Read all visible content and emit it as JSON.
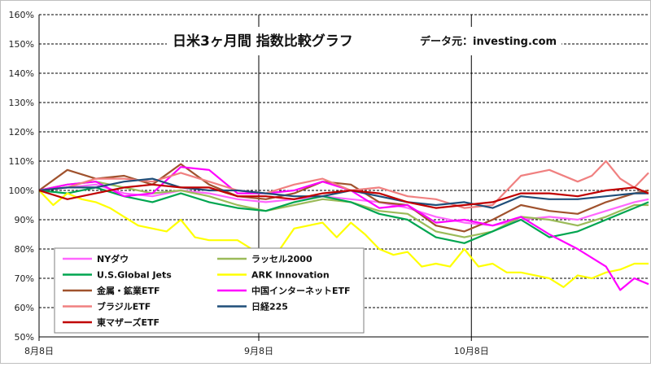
{
  "chart_data": {
    "type": "line",
    "title": "日米3ヶ月間 指数比較グラフ",
    "subtitle": "データ元：investing.com",
    "xlabel": "",
    "ylabel": "",
    "ylim": [
      50,
      160
    ],
    "ytick_labels": [
      "50%",
      "60%",
      "70%",
      "80%",
      "90%",
      "100%",
      "110%",
      "120%",
      "130%",
      "140%",
      "150%",
      "160%"
    ],
    "x_tick_labels": [
      "8月8日",
      "9月8日",
      "10月8日"
    ],
    "x_range_days": [
      0,
      86
    ],
    "grid": "horizontal dashed",
    "legend_placement": "bottom-left",
    "series": [
      {
        "name": "NYダウ",
        "color": "#ff66ff",
        "x": [
          0,
          4,
          8,
          12,
          16,
          20,
          24,
          28,
          32,
          36,
          40,
          44,
          48,
          52,
          56,
          60,
          64,
          68,
          72,
          76,
          80,
          84,
          86
        ],
        "y": [
          100,
          101,
          102,
          99,
          98,
          100,
          99,
          97,
          96,
          97,
          98,
          97,
          96,
          94,
          91,
          89,
          88,
          90,
          91,
          90,
          93,
          96,
          97
        ]
      },
      {
        "name": "ラッセル2000",
        "color": "#9bbb59",
        "x": [
          0,
          4,
          8,
          12,
          16,
          20,
          24,
          28,
          32,
          36,
          40,
          44,
          48,
          52,
          56,
          60,
          64,
          68,
          72,
          76,
          80,
          84,
          86
        ],
        "y": [
          100,
          102,
          103,
          101,
          99,
          100,
          98,
          95,
          93,
          95,
          97,
          96,
          93,
          92,
          86,
          84,
          86,
          91,
          90,
          88,
          91,
          95,
          95
        ]
      },
      {
        "name": "U.S.Global Jets",
        "color": "#00a550",
        "x": [
          0,
          4,
          8,
          12,
          16,
          20,
          24,
          28,
          32,
          36,
          40,
          44,
          48,
          52,
          56,
          60,
          64,
          68,
          72,
          76,
          80,
          84,
          86
        ],
        "y": [
          100,
          99,
          101,
          98,
          96,
          99,
          96,
          94,
          93,
          96,
          98,
          96,
          92,
          90,
          84,
          82,
          86,
          90,
          84,
          86,
          90,
          94,
          96
        ]
      },
      {
        "name": "ARK Innovation",
        "color": "#ffff00",
        "x": [
          0,
          2,
          4,
          6,
          8,
          10,
          12,
          14,
          16,
          18,
          20,
          22,
          24,
          26,
          28,
          30,
          32,
          34,
          36,
          38,
          40,
          42,
          44,
          46,
          48,
          50,
          52,
          54,
          56,
          58,
          60,
          62,
          64,
          66,
          68,
          70,
          72,
          74,
          76,
          78,
          80,
          82,
          84,
          86
        ],
        "y": [
          100,
          95,
          99,
          97,
          96,
          94,
          91,
          88,
          87,
          86,
          90,
          84,
          83,
          83,
          83,
          80,
          78,
          80,
          87,
          88,
          89,
          84,
          89,
          85,
          80,
          78,
          79,
          74,
          75,
          74,
          80,
          74,
          75,
          72,
          72,
          71,
          70,
          67,
          71,
          70,
          72,
          73,
          75,
          75
        ]
      },
      {
        "name": "金属・鉱業ETF",
        "color": "#a0522d",
        "x": [
          0,
          4,
          8,
          12,
          16,
          20,
          24,
          28,
          32,
          36,
          40,
          44,
          48,
          52,
          56,
          60,
          64,
          68,
          72,
          76,
          80,
          84,
          86
        ],
        "y": [
          100,
          107,
          104,
          105,
          102,
          109,
          102,
          98,
          97,
          99,
          103,
          102,
          96,
          95,
          88,
          86,
          90,
          95,
          93,
          92,
          96,
          99,
          100
        ]
      },
      {
        "name": "中国インターネットETF",
        "color": "#ff00ff",
        "x": [
          0,
          4,
          8,
          12,
          16,
          20,
          24,
          28,
          32,
          36,
          40,
          44,
          48,
          52,
          56,
          60,
          64,
          68,
          72,
          76,
          80,
          82,
          84,
          86
        ],
        "y": [
          100,
          102,
          103,
          98,
          99,
          108,
          107,
          99,
          99,
          100,
          103,
          100,
          94,
          95,
          89,
          90,
          88,
          91,
          85,
          80,
          74,
          66,
          70,
          68
        ]
      },
      {
        "name": "ブラジルETF",
        "color": "#f08080",
        "x": [
          0,
          4,
          8,
          12,
          16,
          20,
          24,
          28,
          32,
          36,
          40,
          44,
          48,
          52,
          56,
          60,
          64,
          68,
          72,
          76,
          78,
          80,
          82,
          84,
          86
        ],
        "y": [
          100,
          101,
          104,
          104,
          103,
          106,
          103,
          100,
          99,
          102,
          104,
          100,
          101,
          98,
          97,
          94,
          95,
          105,
          107,
          103,
          105,
          110,
          104,
          101,
          106
        ]
      },
      {
        "name": "日経225",
        "color": "#1f4e79",
        "x": [
          0,
          4,
          8,
          12,
          16,
          20,
          24,
          28,
          32,
          36,
          40,
          44,
          48,
          52,
          56,
          60,
          64,
          68,
          72,
          76,
          80,
          84,
          86
        ],
        "y": [
          100,
          101,
          101,
          103,
          104,
          101,
          100,
          100,
          99,
          98,
          98,
          100,
          98,
          96,
          95,
          96,
          94,
          98,
          97,
          97,
          98,
          99,
          99
        ]
      },
      {
        "name": "東マザーズETF",
        "color": "#c00000",
        "x": [
          0,
          4,
          8,
          12,
          16,
          20,
          24,
          28,
          32,
          36,
          40,
          44,
          48,
          52,
          56,
          60,
          64,
          68,
          72,
          76,
          80,
          84,
          86
        ],
        "y": [
          100,
          97,
          99,
          101,
          102,
          101,
          101,
          98,
          98,
          97,
          99,
          100,
          99,
          96,
          94,
          95,
          96,
          99,
          99,
          98,
          100,
          101,
          99
        ]
      }
    ]
  }
}
